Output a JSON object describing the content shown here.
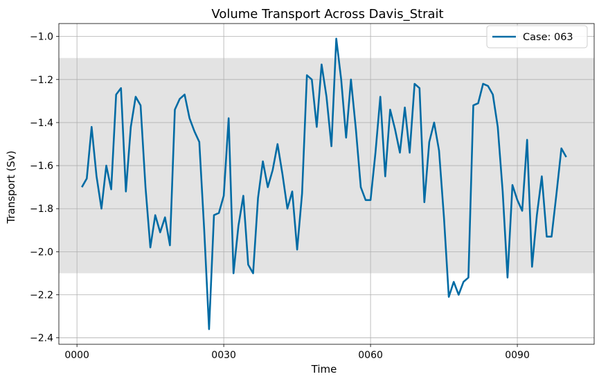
{
  "chart_data": {
    "type": "line",
    "title": "Volume Transport Across Davis_Strait",
    "xlabel": "Time",
    "ylabel": "Transport (Sv)",
    "xlim": [
      -3.7,
      105.7
    ],
    "ylim": [
      -2.43,
      -0.94
    ],
    "x_ticks": [
      0,
      30,
      60,
      90
    ],
    "x_tick_labels": [
      "0000",
      "0030",
      "0060",
      "0090"
    ],
    "y_ticks": [
      -2.4,
      -2.2,
      -2.0,
      -1.8,
      -1.6,
      -1.4,
      -1.2,
      -1.0
    ],
    "y_tick_labels": [
      "−2.4",
      "−2.2",
      "−2.0",
      "−1.8",
      "−1.6",
      "−1.4",
      "−1.2",
      "−1.0"
    ],
    "band": {
      "from": -2.1,
      "to": -1.1,
      "color": "#e3e3e3"
    },
    "grid": true,
    "legend_position": "top-right",
    "series": [
      {
        "name": "Case: 063",
        "color": "#006ba4",
        "x": [
          1,
          2,
          3,
          4,
          5,
          6,
          7,
          8,
          9,
          10,
          11,
          12,
          13,
          14,
          15,
          16,
          17,
          18,
          19,
          20,
          21,
          22,
          23,
          24,
          25,
          26,
          27,
          28,
          29,
          30,
          31,
          32,
          33,
          34,
          35,
          36,
          37,
          38,
          39,
          40,
          41,
          42,
          43,
          44,
          45,
          46,
          47,
          48,
          49,
          50,
          51,
          52,
          53,
          54,
          55,
          56,
          57,
          58,
          59,
          60,
          61,
          62,
          63,
          64,
          65,
          66,
          67,
          68,
          69,
          70,
          71,
          72,
          73,
          74,
          75,
          76,
          77,
          78,
          79,
          80,
          81,
          82,
          83,
          84,
          85,
          86,
          87,
          88,
          89,
          90,
          91,
          92,
          93,
          94,
          95,
          96,
          97,
          98,
          99,
          100
        ],
        "values": [
          -1.7,
          -1.66,
          -1.42,
          -1.65,
          -1.8,
          -1.6,
          -1.71,
          -1.27,
          -1.24,
          -1.72,
          -1.42,
          -1.28,
          -1.32,
          -1.7,
          -1.98,
          -1.83,
          -1.91,
          -1.84,
          -1.97,
          -1.34,
          -1.29,
          -1.27,
          -1.38,
          -1.44,
          -1.49,
          -1.9,
          -2.36,
          -1.83,
          -1.82,
          -1.74,
          -1.38,
          -2.1,
          -1.88,
          -1.74,
          -2.06,
          -2.1,
          -1.75,
          -1.58,
          -1.7,
          -1.62,
          -1.5,
          -1.64,
          -1.8,
          -1.72,
          -1.99,
          -1.73,
          -1.18,
          -1.2,
          -1.42,
          -1.13,
          -1.28,
          -1.51,
          -1.01,
          -1.2,
          -1.47,
          -1.2,
          -1.43,
          -1.7,
          -1.76,
          -1.76,
          -1.54,
          -1.28,
          -1.65,
          -1.34,
          -1.43,
          -1.54,
          -1.33,
          -1.54,
          -1.22,
          -1.24,
          -1.77,
          -1.49,
          -1.4,
          -1.53,
          -1.84,
          -2.21,
          -2.14,
          -2.2,
          -2.14,
          -2.12,
          -1.32,
          -1.31,
          -1.22,
          -1.23,
          -1.27,
          -1.42,
          -1.72,
          -2.12,
          -1.69,
          -1.76,
          -1.81,
          -1.48,
          -2.07,
          -1.83,
          -1.65,
          -1.93,
          -1.93,
          -1.73,
          -1.52,
          -1.56
        ]
      }
    ]
  }
}
